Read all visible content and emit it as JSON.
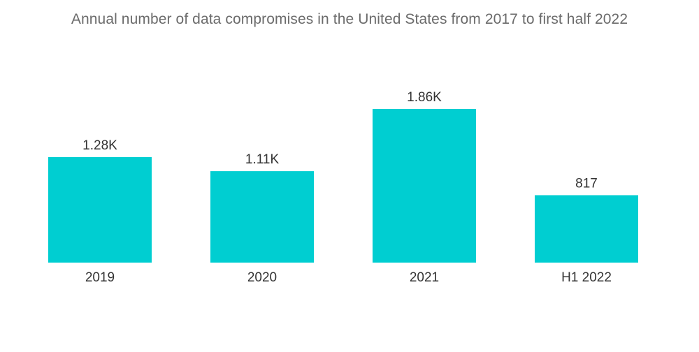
{
  "chart_data": {
    "type": "bar",
    "title": "Annual number of data compromises in the United States from 2017 to first half 2022",
    "categories": [
      "2019",
      "2020",
      "2021",
      "H1 2022"
    ],
    "values": [
      1279,
      1108,
      1862,
      817
    ],
    "value_labels": [
      "1.28K",
      "1.11K",
      "1.86K",
      "817"
    ],
    "xlabel": "",
    "ylabel": "",
    "ylim": [
      0,
      1862
    ],
    "grid": false,
    "legend": "none",
    "bar_color": "#00ced1"
  }
}
